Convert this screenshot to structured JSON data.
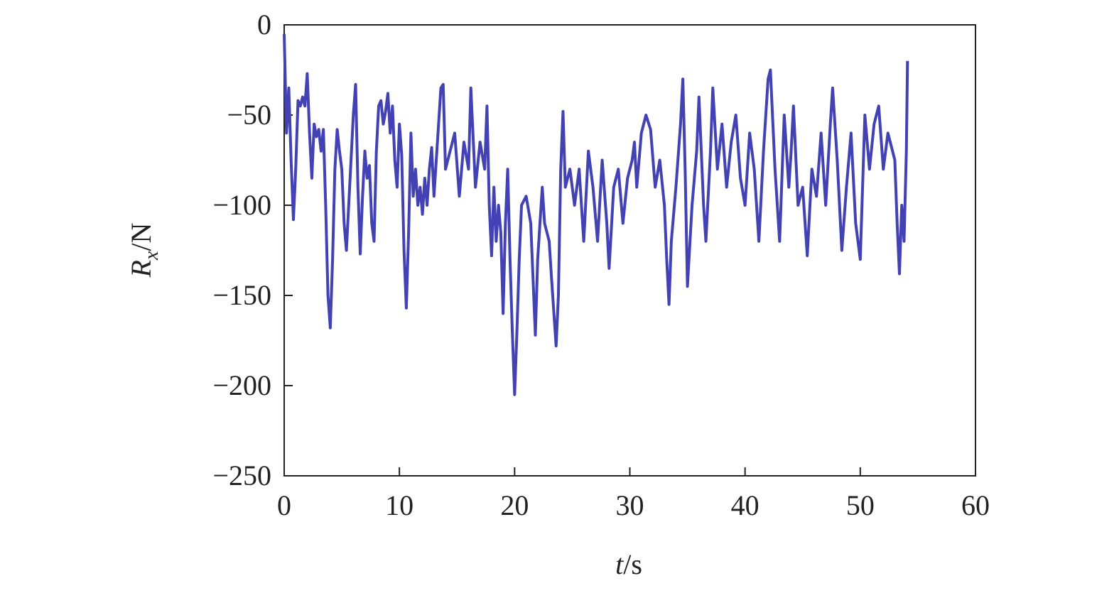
{
  "chart_data": {
    "type": "line",
    "xlabel": {
      "symbol": "t",
      "unit": "/s"
    },
    "ylabel": {
      "symbol": "R",
      "subscript": "x",
      "unit": "/N"
    },
    "color": "#4242b4",
    "xlim": [
      0,
      60
    ],
    "xticks": [
      0,
      10,
      20,
      30,
      40,
      50,
      60
    ],
    "ylim": [
      -250,
      0
    ],
    "yticks": [
      {
        "value": -250,
        "label": "−250"
      },
      {
        "value": -200,
        "label": "−200"
      },
      {
        "value": -150,
        "label": "−150"
      },
      {
        "value": -100,
        "label": "−100"
      },
      {
        "value": -50,
        "label": "−50"
      },
      0
    ],
    "x": [
      0,
      0.2,
      0.4,
      0.6,
      0.8,
      1.0,
      1.2,
      1.4,
      1.6,
      1.8,
      2.0,
      2.2,
      2.4,
      2.6,
      2.8,
      3.0,
      3.2,
      3.4,
      3.6,
      3.8,
      4.0,
      4.2,
      4.4,
      4.6,
      4.8,
      5.0,
      5.2,
      5.4,
      5.6,
      5.8,
      6.0,
      6.2,
      6.4,
      6.6,
      6.8,
      7.0,
      7.2,
      7.4,
      7.6,
      7.8,
      8.0,
      8.2,
      8.4,
      8.6,
      8.8,
      9.0,
      9.2,
      9.4,
      9.6,
      9.8,
      10.0,
      10.2,
      10.4,
      10.6,
      10.8,
      11.0,
      11.2,
      11.4,
      11.6,
      11.8,
      12.0,
      12.2,
      12.4,
      12.6,
      12.8,
      13.0,
      13.2,
      13.4,
      13.6,
      13.8,
      14.0,
      14.4,
      14.8,
      15.2,
      15.6,
      16.0,
      16.2,
      16.6,
      17.0,
      17.4,
      17.6,
      17.8,
      18.0,
      18.2,
      18.4,
      18.6,
      18.8,
      19.0,
      19.2,
      19.4,
      19.6,
      19.8,
      20.0,
      20.2,
      20.4,
      20.6,
      21.0,
      21.4,
      21.8,
      22.0,
      22.4,
      22.6,
      23.0,
      23.2,
      23.6,
      23.8,
      24.0,
      24.2,
      24.4,
      24.8,
      25.2,
      25.6,
      26.0,
      26.4,
      26.8,
      27.2,
      27.6,
      28.0,
      28.2,
      28.6,
      29.0,
      29.4,
      29.8,
      30.2,
      30.4,
      30.6,
      31.0,
      31.4,
      31.8,
      32.2,
      32.6,
      33.0,
      33.2,
      33.4,
      33.6,
      33.8,
      34.0,
      34.4,
      34.6,
      34.8,
      35.0,
      35.4,
      35.8,
      36.0,
      36.4,
      36.6,
      37.0,
      37.2,
      37.6,
      38.0,
      38.4,
      38.8,
      39.2,
      39.6,
      40.0,
      40.4,
      40.8,
      41.2,
      41.6,
      42.0,
      42.2,
      42.6,
      43.0,
      43.4,
      43.8,
      44.0,
      44.2,
      44.6,
      45.0,
      45.4,
      45.8,
      46.2,
      46.6,
      47.0,
      47.4,
      47.6,
      48.0,
      48.4,
      48.8,
      49.2,
      49.6,
      50.0,
      50.4,
      50.8,
      51.2,
      51.6,
      52.0,
      52.4,
      52.8,
      53.0,
      53.2,
      53.4,
      53.6,
      53.8,
      54.0,
      54.1
    ],
    "values": [
      -5,
      -60,
      -35,
      -75,
      -108,
      -80,
      -42,
      -45,
      -40,
      -45,
      -27,
      -60,
      -85,
      -55,
      -62,
      -58,
      -70,
      -58,
      -100,
      -150,
      -168,
      -130,
      -80,
      -58,
      -70,
      -80,
      -110,
      -125,
      -100,
      -75,
      -50,
      -33,
      -90,
      -127,
      -95,
      -70,
      -85,
      -78,
      -110,
      -120,
      -70,
      -45,
      -42,
      -55,
      -48,
      -38,
      -60,
      -45,
      -75,
      -90,
      -55,
      -72,
      -125,
      -157,
      -115,
      -60,
      -95,
      -80,
      -100,
      -90,
      -105,
      -85,
      -100,
      -80,
      -68,
      -95,
      -75,
      -55,
      -35,
      -33,
      -80,
      -70,
      -60,
      -95,
      -65,
      -80,
      -35,
      -90,
      -65,
      -80,
      -45,
      -100,
      -128,
      -90,
      -120,
      -100,
      -115,
      -160,
      -110,
      -80,
      -130,
      -170,
      -205,
      -170,
      -130,
      -100,
      -95,
      -110,
      -172,
      -130,
      -90,
      -110,
      -120,
      -140,
      -178,
      -150,
      -80,
      -48,
      -90,
      -80,
      -100,
      -80,
      -120,
      -70,
      -90,
      -120,
      -75,
      -110,
      -135,
      -90,
      -80,
      -110,
      -85,
      -75,
      -65,
      -90,
      -60,
      -50,
      -58,
      -90,
      -75,
      -100,
      -130,
      -155,
      -120,
      -105,
      -90,
      -55,
      -30,
      -80,
      -145,
      -100,
      -70,
      -40,
      -100,
      -120,
      -70,
      -35,
      -80,
      -55,
      -90,
      -65,
      -50,
      -85,
      -100,
      -60,
      -80,
      -120,
      -70,
      -30,
      -25,
      -80,
      -120,
      -50,
      -90,
      -70,
      -45,
      -100,
      -90,
      -128,
      -80,
      -95,
      -60,
      -100,
      -55,
      -35,
      -75,
      -125,
      -90,
      -60,
      -110,
      -130,
      -50,
      -80,
      -55,
      -45,
      -80,
      -60,
      -70,
      -75,
      -110,
      -138,
      -100,
      -120,
      -70,
      -20
    ]
  }
}
